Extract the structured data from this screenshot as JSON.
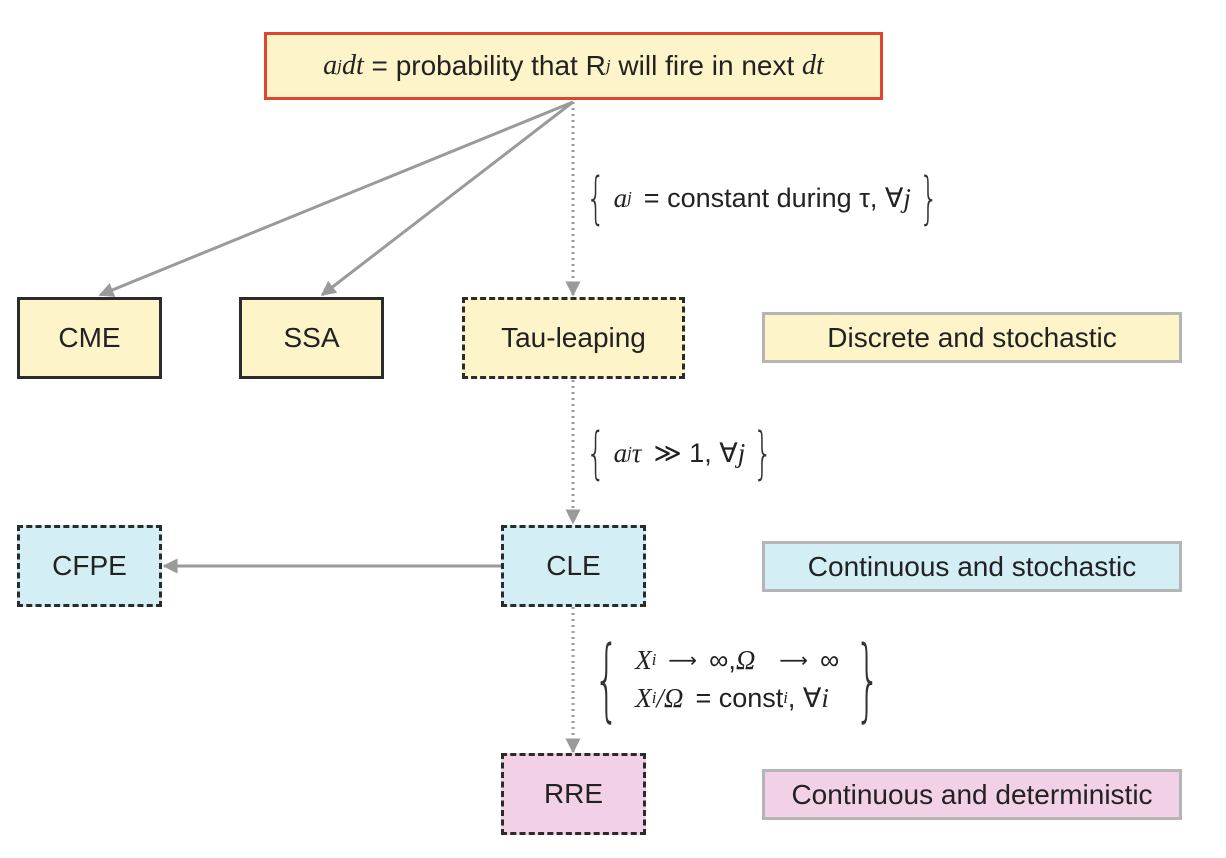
{
  "top": {
    "a": "a",
    "j1": "j",
    "dt1": "dt",
    "eq": " = probability that R",
    "j2": "j",
    "rest": " will fire in next ",
    "dt2": "dt"
  },
  "nodes": {
    "cme": "CME",
    "ssa": "SSA",
    "tau": "Tau-leaping",
    "cfpe": "CFPE",
    "cle": "CLE",
    "rre": "RRE"
  },
  "legend": {
    "discrete": "Discrete and stochastic",
    "continuous_stochastic": "Continuous and stochastic",
    "continuous_deterministic": "Continuous and deterministic"
  },
  "conditions": {
    "c1": {
      "a": "a",
      "j": "j",
      "text": "=  constant during τ, ∀",
      "jj": "j"
    },
    "c2": {
      "a": "a",
      "j": "j",
      "tau": "τ",
      "text": "≫ 1, ∀",
      "jj": "j"
    },
    "c3": {
      "l1_x": "X",
      "l1_i": "i",
      "l1_arrow1": "⟶",
      "l1_inf1": "∞,",
      "l1_omega": "Ω",
      "l1_arrow2": "⟶",
      "l1_inf2": "∞",
      "l2_x": "X",
      "l2_i": "i",
      "l2_slash": "/Ω",
      "l2_eq": "=  const",
      "l2_sub": "i",
      "l2_rest": ", ∀",
      "l2_ii": "i"
    }
  },
  "colors": {
    "edge": "#9a9a9a",
    "top_border": "#e0462e",
    "yellow": "#fdf4c9",
    "cyan": "#d3eef4",
    "pink": "#f2d0e6"
  }
}
